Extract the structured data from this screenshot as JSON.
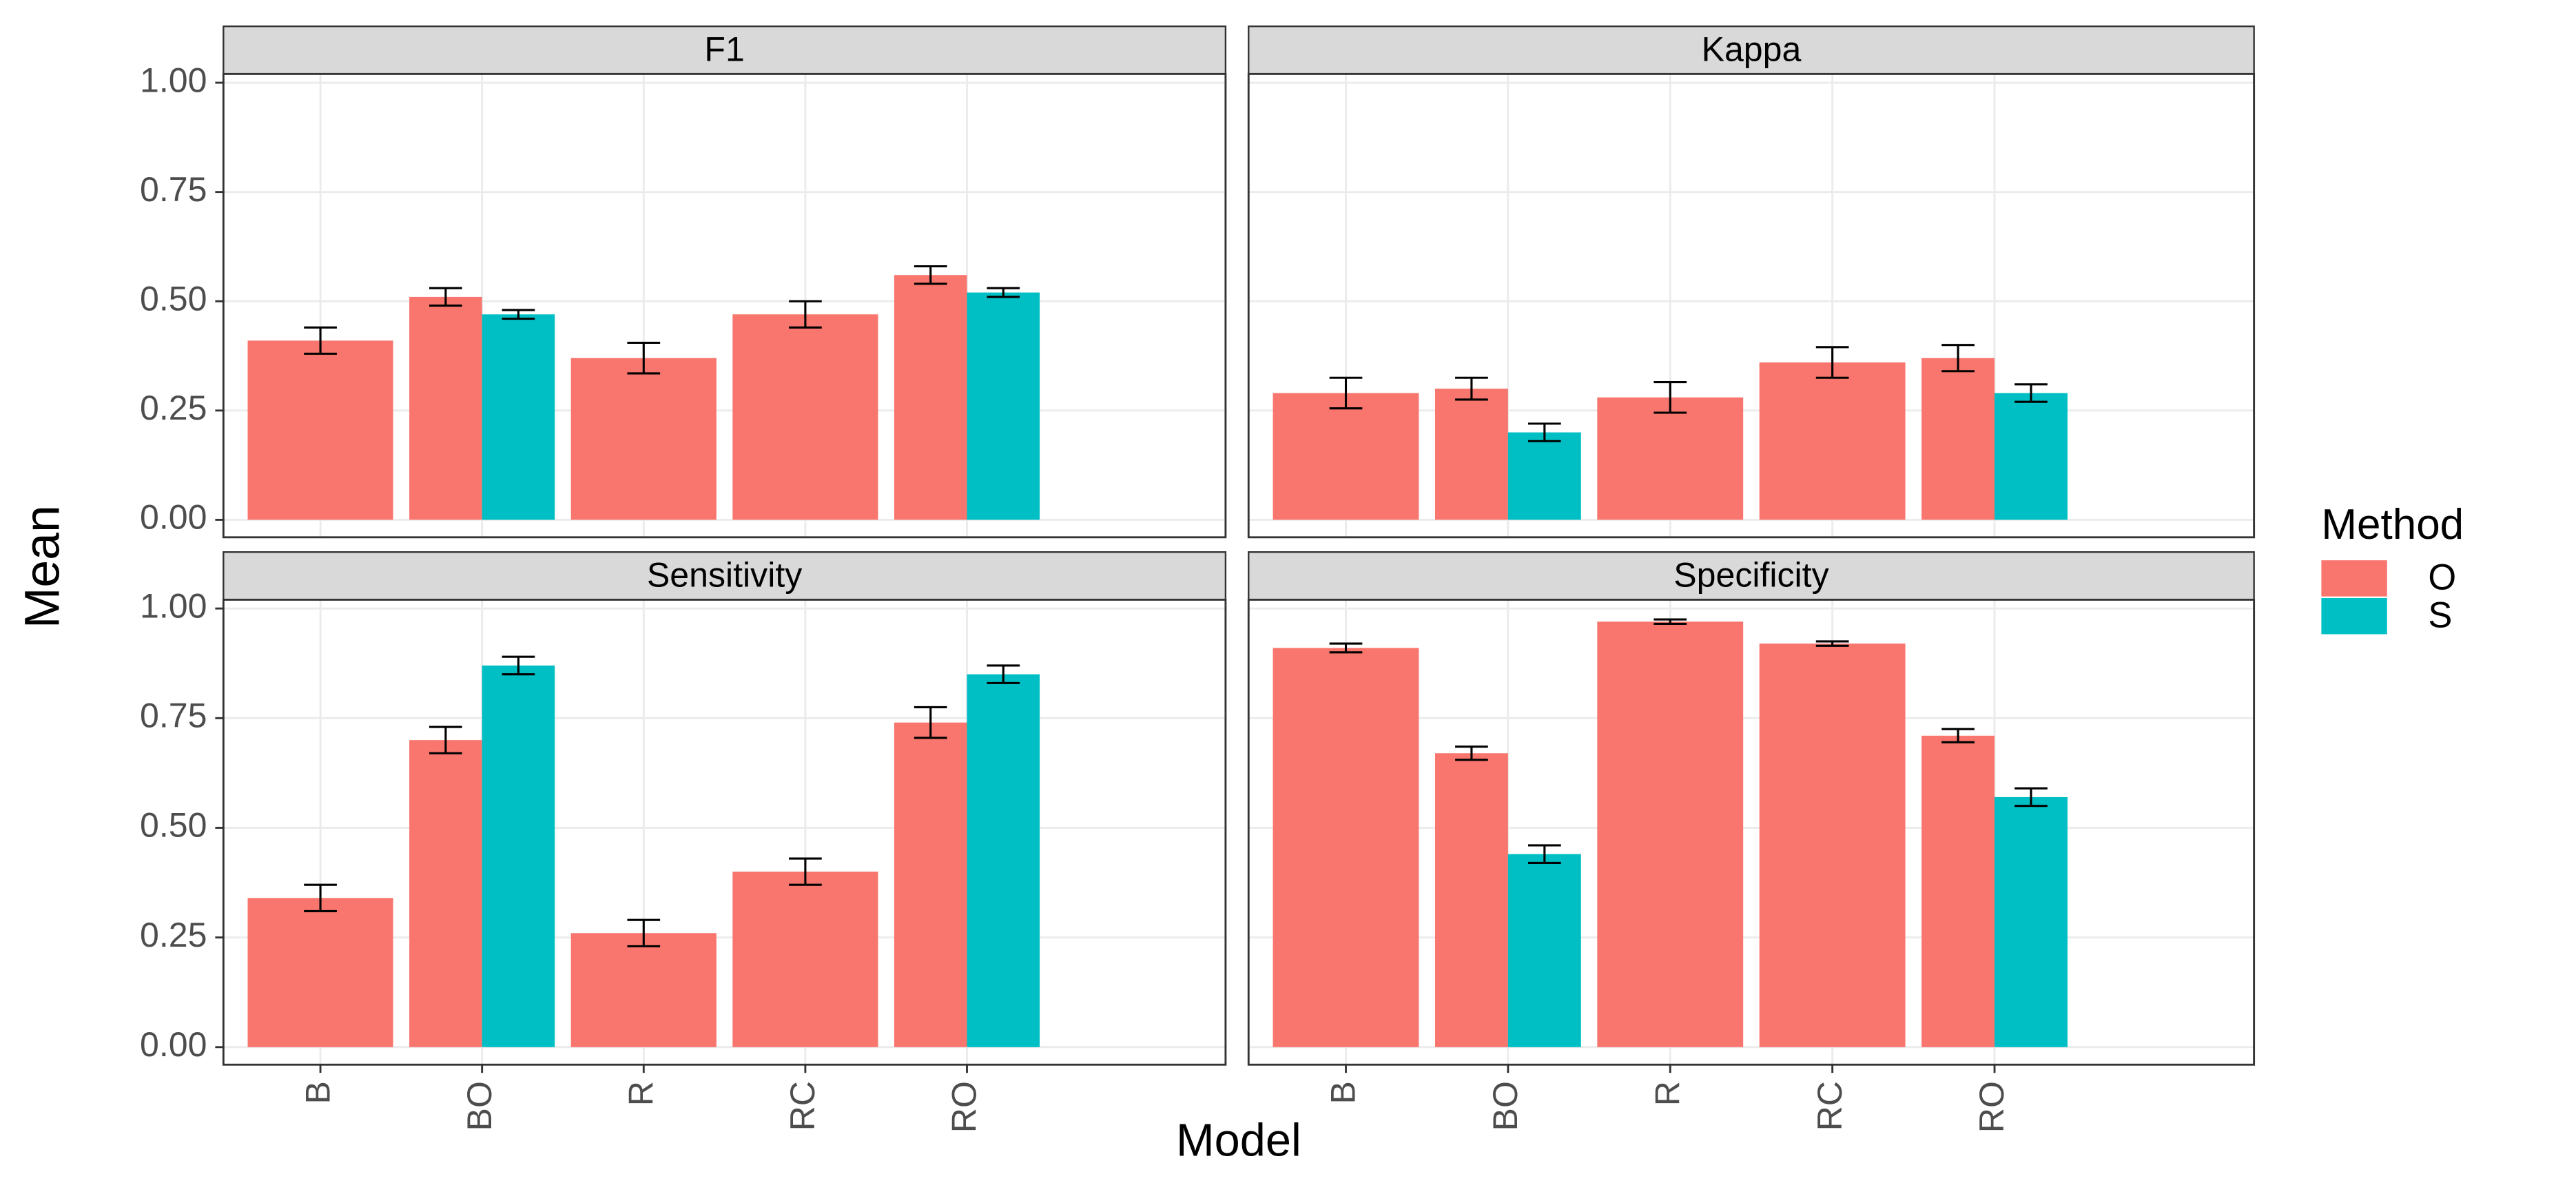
{
  "chart_data": {
    "type": "bar",
    "x_label": "Model",
    "y_label": "Mean",
    "legend_title": "Method",
    "legend": [
      {
        "name": "O",
        "color": "#f8766d"
      },
      {
        "name": "S",
        "color": "#00bfc4"
      }
    ],
    "categories": [
      "B",
      "BO",
      "R",
      "RC",
      "RO"
    ],
    "ylim": [
      -0.04,
      1.02
    ],
    "yticks": [
      {
        "value": 0,
        "label": "0.00"
      },
      {
        "value": 0.25,
        "label": "0.25"
      },
      {
        "value": 0.5,
        "label": "0.50"
      },
      {
        "value": 0.75,
        "label": "0.75"
      },
      {
        "value": 1,
        "label": "1.00"
      }
    ],
    "grid": true,
    "facets": [
      {
        "title": "F1",
        "series": [
          {
            "values": [
              0.41,
              0.51,
              0.37,
              0.47,
              0.56
            ],
            "errors": [
              0.03,
              0.02,
              0.035,
              0.03,
              0.02
            ]
          },
          {
            "values": [
              null,
              0.47,
              null,
              null,
              0.52
            ],
            "errors": [
              null,
              0.01,
              null,
              null,
              0.01
            ]
          }
        ]
      },
      {
        "title": "Kappa",
        "series": [
          {
            "values": [
              0.29,
              0.3,
              0.28,
              0.36,
              0.37
            ],
            "errors": [
              0.035,
              0.025,
              0.035,
              0.035,
              0.03
            ]
          },
          {
            "values": [
              null,
              0.2,
              null,
              null,
              0.29
            ],
            "errors": [
              null,
              0.02,
              null,
              null,
              0.02
            ]
          }
        ]
      },
      {
        "title": "Sensitivity",
        "series": [
          {
            "values": [
              0.34,
              0.7,
              0.26,
              0.4,
              0.74
            ],
            "errors": [
              0.03,
              0.03,
              0.03,
              0.03,
              0.035
            ]
          },
          {
            "values": [
              null,
              0.87,
              null,
              null,
              0.85
            ],
            "errors": [
              null,
              0.02,
              null,
              null,
              0.02
            ]
          }
        ]
      },
      {
        "title": "Specificity",
        "series": [
          {
            "values": [
              0.91,
              0.67,
              0.97,
              0.92,
              0.71
            ],
            "errors": [
              0.01,
              0.015,
              0.005,
              0.005,
              0.015
            ]
          },
          {
            "values": [
              null,
              0.44,
              null,
              null,
              0.57
            ],
            "errors": [
              null,
              0.02,
              null,
              null,
              0.02
            ]
          }
        ]
      }
    ]
  }
}
